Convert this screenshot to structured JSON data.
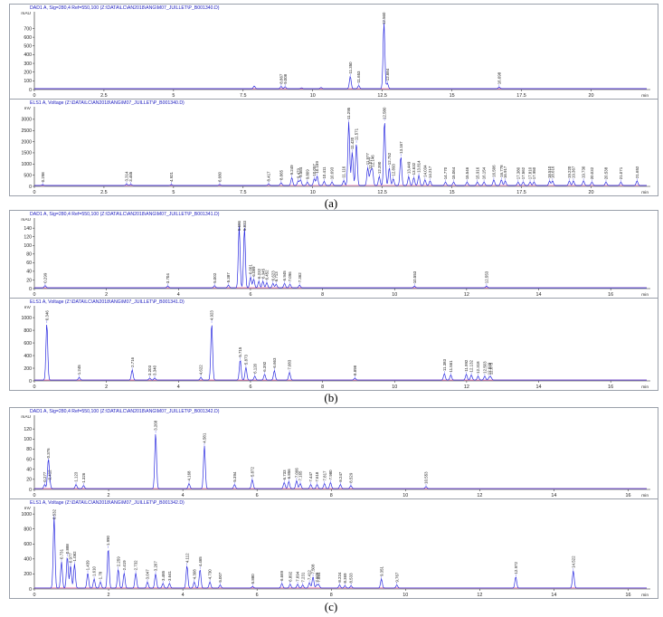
{
  "figure": {
    "captions": [
      "(a)",
      "(b)",
      "(c)"
    ]
  },
  "colors": {
    "trace": "#2a2ae0",
    "baseline": "#cc2288",
    "axis": "#222222",
    "title": "#2020c0"
  },
  "chart_data": [
    {
      "type": "line",
      "id": "a-uv",
      "title": "DAD1 A, Sig=280,4 Ref=550,100 (Z:\\DATA\\LC\\AN2018\\ANG\\M07_JUILLET\\P_B001340.D)",
      "ylabel": "mAU",
      "xlabel": "min",
      "xlim": [
        0,
        22
      ],
      "ylim": [
        0,
        850
      ],
      "xticks": [
        0,
        2.5,
        5,
        7.5,
        10,
        12.5,
        15,
        17.5,
        20
      ],
      "xtick_labels": [
        "0",
        "2.5",
        "5",
        "7.5",
        "10",
        "12.5",
        "15",
        "17.5",
        "20"
      ],
      "yticks": [
        0,
        100,
        200,
        300,
        400,
        500,
        600,
        700
      ],
      "ytick_labels": [
        "0",
        "100",
        "200",
        "300",
        "400",
        "500",
        "600",
        "700"
      ],
      "peaks": [
        {
          "t": 8.867,
          "h": 25,
          "label": "8.867"
        },
        {
          "t": 9.008,
          "h": 22,
          "label": "9.008"
        },
        {
          "t": 11.35,
          "h": 140,
          "label": "11.350"
        },
        {
          "t": 11.653,
          "h": 35,
          "label": "11.653"
        },
        {
          "t": 12.56,
          "h": 760,
          "label": "12.560"
        },
        {
          "t": 12.684,
          "h": 60,
          "label": "12.684"
        },
        {
          "t": 16.698,
          "h": 18,
          "label": "16.698"
        }
      ],
      "minor": [
        {
          "t": 7.9,
          "h": 30
        },
        {
          "t": 9.6,
          "h": 10
        },
        {
          "t": 10.3,
          "h": 14
        }
      ]
    },
    {
      "type": "line",
      "id": "a-els",
      "title": "ELS1 A, Voltage (Z:\\DATA\\LC\\AN2018\\ANG\\M07_JUILLET\\P_B001340.D)",
      "ylabel": "mV",
      "xlabel": "min",
      "xlim": [
        0,
        22
      ],
      "ylim": [
        0,
        3400
      ],
      "xticks": [
        0,
        2.5,
        5,
        7.5,
        10,
        12.5,
        15,
        17.5,
        20
      ],
      "xtick_labels": [
        "0",
        "2.5",
        "5",
        "7.5",
        "10",
        "12.5",
        "15",
        "17.5",
        "20"
      ],
      "yticks": [
        0,
        500,
        1000,
        1500,
        2000,
        2500,
        3000
      ],
      "ytick_labels": [
        "0",
        "500",
        "1000",
        "1500",
        "2000",
        "2500",
        "3000"
      ],
      "peaks": [
        {
          "t": 0.298,
          "h": 30,
          "label": "0.298"
        },
        {
          "t": 3.314,
          "h": 60,
          "label": "3.314"
        },
        {
          "t": 3.465,
          "h": 50,
          "label": "3.465"
        },
        {
          "t": 4.921,
          "h": 40,
          "label": "4.921"
        },
        {
          "t": 6.66,
          "h": 40,
          "label": "6.660"
        },
        {
          "t": 8.417,
          "h": 60,
          "label": "8.417"
        },
        {
          "t": 8.865,
          "h": 120,
          "label": "8.865"
        },
        {
          "t": 9.249,
          "h": 350,
          "label": "9.249"
        },
        {
          "t": 9.479,
          "h": 200,
          "label": "9.479"
        },
        {
          "t": 9.564,
          "h": 250,
          "label": "9.564"
        },
        {
          "t": 9.809,
          "h": 150,
          "label": "9.809"
        },
        {
          "t": 10.057,
          "h": 300,
          "label": "10.057"
        },
        {
          "t": 10.159,
          "h": 420,
          "label": "10.159"
        },
        {
          "t": 10.411,
          "h": 180,
          "label": "10.411"
        },
        {
          "t": 10.693,
          "h": 150,
          "label": "10.693"
        },
        {
          "t": 11.116,
          "h": 220,
          "label": "11.116"
        },
        {
          "t": 11.295,
          "h": 2850,
          "label": "11.295"
        },
        {
          "t": 11.42,
          "h": 1500,
          "label": "11.420"
        },
        {
          "t": 11.571,
          "h": 1900,
          "label": "11.571"
        },
        {
          "t": 11.977,
          "h": 800,
          "label": "11.977"
        },
        {
          "t": 12.077,
          "h": 600,
          "label": "12.077"
        },
        {
          "t": 12.146,
          "h": 700,
          "label": "12.146"
        },
        {
          "t": 12.39,
          "h": 400,
          "label": "12.390"
        },
        {
          "t": 12.58,
          "h": 2900,
          "label": "12.580"
        },
        {
          "t": 12.752,
          "h": 800,
          "label": "12.752"
        },
        {
          "t": 12.893,
          "h": 300,
          "label": "12.893"
        },
        {
          "t": 13.167,
          "h": 1300,
          "label": "13.167"
        },
        {
          "t": 13.449,
          "h": 400,
          "label": "13.449"
        },
        {
          "t": 13.632,
          "h": 350,
          "label": "13.632"
        },
        {
          "t": 13.814,
          "h": 450,
          "label": "13.814"
        },
        {
          "t": 14.034,
          "h": 250,
          "label": "14.034"
        },
        {
          "t": 14.217,
          "h": 200,
          "label": "14.217"
        },
        {
          "t": 14.77,
          "h": 150,
          "label": "14.770"
        },
        {
          "t": 15.064,
          "h": 150,
          "label": "15.064"
        },
        {
          "t": 15.546,
          "h": 150,
          "label": "15.546"
        },
        {
          "t": 15.916,
          "h": 150,
          "label": "15.916"
        },
        {
          "t": 16.154,
          "h": 150,
          "label": "16.154"
        },
        {
          "t": 16.506,
          "h": 250,
          "label": "16.506"
        },
        {
          "t": 16.778,
          "h": 250,
          "label": "16.778"
        },
        {
          "t": 16.917,
          "h": 200,
          "label": "16.917"
        },
        {
          "t": 17.38,
          "h": 150,
          "label": "17.380"
        },
        {
          "t": 17.562,
          "h": 150,
          "label": "17.562"
        },
        {
          "t": 17.81,
          "h": 150,
          "label": "17.810"
        },
        {
          "t": 17.95,
          "h": 150,
          "label": "17.950"
        },
        {
          "t": 18.51,
          "h": 200,
          "label": "18.510"
        },
        {
          "t": 18.616,
          "h": 200,
          "label": "18.616"
        },
        {
          "t": 19.22,
          "h": 200,
          "label": "19.220"
        },
        {
          "t": 19.367,
          "h": 200,
          "label": "19.367"
        },
        {
          "t": 19.73,
          "h": 200,
          "label": "19.730"
        },
        {
          "t": 20.032,
          "h": 150,
          "label": "20.032"
        },
        {
          "t": 20.538,
          "h": 150,
          "label": "20.538"
        },
        {
          "t": 21.071,
          "h": 150,
          "label": "21.071"
        },
        {
          "t": 21.652,
          "h": 200,
          "label": "21.652"
        }
      ],
      "minor": []
    },
    {
      "type": "line",
      "id": "b-uv",
      "title": "DAD1 A, Sig=280,4 Ref=550,100 (Z:\\DATA\\LC\\AN2018\\ANG\\M07_JUILLET\\P_B001341.D)",
      "ylabel": "mAU",
      "xlabel": "min",
      "xlim": [
        0,
        17
      ],
      "ylim": [
        0,
        155
      ],
      "xticks": [
        0,
        2,
        4,
        6,
        8,
        10,
        12,
        14,
        16
      ],
      "xtick_labels": [
        "0",
        "2",
        "4",
        "6",
        "8",
        "10",
        "12",
        "14",
        "16"
      ],
      "yticks": [
        0,
        20,
        40,
        60,
        80,
        100,
        120,
        140
      ],
      "ytick_labels": [
        "0",
        "20",
        "40",
        "60",
        "80",
        "100",
        "120",
        "140"
      ],
      "peaks": [
        {
          "t": 0.299,
          "h": 5,
          "label": "0.299"
        },
        {
          "t": 3.704,
          "h": 4,
          "label": "3.704"
        },
        {
          "t": 5.002,
          "h": 5,
          "label": "5.002"
        },
        {
          "t": 5.387,
          "h": 6,
          "label": "5.387"
        },
        {
          "t": 5.686,
          "h": 143,
          "label": "5.686"
        },
        {
          "t": 5.833,
          "h": 140,
          "label": "5.833"
        },
        {
          "t": 6.001,
          "h": 25,
          "label": "6.001"
        },
        {
          "t": 6.089,
          "h": 20,
          "label": "6.089"
        },
        {
          "t": 6.232,
          "h": 15,
          "label": "6.232"
        },
        {
          "t": 6.345,
          "h": 15,
          "label": "6.345"
        },
        {
          "t": 6.452,
          "h": 12,
          "label": "6.452"
        },
        {
          "t": 6.623,
          "h": 10,
          "label": "6.623"
        },
        {
          "t": 6.713,
          "h": 8,
          "label": "6.713"
        },
        {
          "t": 6.945,
          "h": 10,
          "label": "6.945"
        },
        {
          "t": 7.096,
          "h": 8,
          "label": "7.096"
        },
        {
          "t": 7.362,
          "h": 6,
          "label": "7.362"
        },
        {
          "t": 10.553,
          "h": 4,
          "label": "10.553"
        },
        {
          "t": 12.553,
          "h": 4,
          "label": "12.553"
        }
      ],
      "minor": []
    },
    {
      "type": "line",
      "id": "b-els",
      "title": "ELS1 A, Voltage (Z:\\DATA\\LC\\AN2018\\ANG\\M07_JUILLET\\P_B001341.D)",
      "ylabel": "mV",
      "xlabel": "min",
      "xlim": [
        0,
        17
      ],
      "ylim": [
        0,
        1130
      ],
      "xticks": [
        0,
        2,
        4,
        6,
        8,
        10,
        12,
        14,
        16
      ],
      "xtick_labels": [
        "0",
        "2",
        "4",
        "6",
        "8",
        "10",
        "12",
        "14",
        "16"
      ],
      "yticks": [
        0,
        200,
        400,
        600,
        800,
        1000
      ],
      "ytick_labels": [
        "0",
        "200",
        "400",
        "600",
        "800",
        "1000"
      ],
      "peaks": [
        {
          "t": 0.346,
          "h": 900,
          "label": "0.346"
        },
        {
          "t": 1.245,
          "h": 40,
          "label": "1.245"
        },
        {
          "t": 2.716,
          "h": 160,
          "label": "2.716"
        },
        {
          "t": 3.203,
          "h": 30,
          "label": "3.203"
        },
        {
          "t": 3.34,
          "h": 30,
          "label": "3.340"
        },
        {
          "t": 4.622,
          "h": 40,
          "label": "4.622"
        },
        {
          "t": 4.923,
          "h": 900,
          "label": "4.923"
        },
        {
          "t": 5.715,
          "h": 320,
          "label": "5.715"
        },
        {
          "t": 5.873,
          "h": 200,
          "label": "5.873"
        },
        {
          "t": 6.12,
          "h": 60,
          "label": "6.120"
        },
        {
          "t": 6.392,
          "h": 90,
          "label": "6.392"
        },
        {
          "t": 6.663,
          "h": 150,
          "label": "6.663"
        },
        {
          "t": 7.083,
          "h": 120,
          "label": "7.083"
        },
        {
          "t": 8.898,
          "h": 30,
          "label": "8.898"
        },
        {
          "t": 11.383,
          "h": 100,
          "label": "11.383"
        },
        {
          "t": 11.561,
          "h": 80,
          "label": "11.561"
        },
        {
          "t": 11.992,
          "h": 90,
          "label": "11.992"
        },
        {
          "t": 12.132,
          "h": 80,
          "label": "12.132"
        },
        {
          "t": 12.318,
          "h": 60,
          "label": "12.318"
        },
        {
          "t": 12.503,
          "h": 60,
          "label": "12.503"
        },
        {
          "t": 12.629,
          "h": 40,
          "label": "12.629"
        },
        {
          "t": 12.675,
          "h": 40,
          "label": "12.675"
        }
      ],
      "minor": []
    },
    {
      "type": "line",
      "id": "c-uv",
      "title": "DAD1 A, Sig=280,4 Ref=550,100 (Z:\\DATA\\LC\\AN2018\\ANG\\M07_JUILLET\\P_B001342.D)",
      "ylabel": "mAU",
      "xlabel": "min",
      "xlim": [
        0,
        16.5
      ],
      "ylim": [
        0,
        140
      ],
      "xticks": [
        0,
        2,
        4,
        6,
        8,
        10,
        12,
        14,
        16
      ],
      "xtick_labels": [
        "0",
        "2",
        "4",
        "6",
        "8",
        "10",
        "12",
        "14",
        "16"
      ],
      "yticks": [
        0,
        20,
        40,
        60,
        80,
        100,
        120
      ],
      "ytick_labels": [
        "0",
        "20",
        "40",
        "60",
        "80",
        "100",
        "120"
      ],
      "peaks": [
        {
          "t": 0.277,
          "h": 8,
          "label": "0.277"
        },
        {
          "t": 0.376,
          "h": 55,
          "label": "0.376"
        },
        {
          "t": 0.412,
          "h": 12,
          "label": "0.412"
        },
        {
          "t": 1.123,
          "h": 8,
          "label": "1.123"
        },
        {
          "t": 1.326,
          "h": 6,
          "label": "1.326"
        },
        {
          "t": 3.268,
          "h": 110,
          "label": "3.268"
        },
        {
          "t": 4.168,
          "h": 10,
          "label": "4.168"
        },
        {
          "t": 4.581,
          "h": 85,
          "label": "4.581"
        },
        {
          "t": 5.394,
          "h": 8,
          "label": "5.394"
        },
        {
          "t": 5.872,
          "h": 18,
          "label": "5.872"
        },
        {
          "t": 6.733,
          "h": 12,
          "label": "6.733"
        },
        {
          "t": 6.856,
          "h": 14,
          "label": "6.856"
        },
        {
          "t": 7.066,
          "h": 16,
          "label": "7.066"
        },
        {
          "t": 7.165,
          "h": 10,
          "label": "7.165"
        },
        {
          "t": 7.447,
          "h": 8,
          "label": "7.447"
        },
        {
          "t": 7.618,
          "h": 8,
          "label": "7.618"
        },
        {
          "t": 7.817,
          "h": 10,
          "label": "7.817"
        },
        {
          "t": 7.98,
          "h": 12,
          "label": "7.980"
        },
        {
          "t": 8.247,
          "h": 8,
          "label": "8.247"
        },
        {
          "t": 8.529,
          "h": 6,
          "label": "8.529"
        },
        {
          "t": 10.553,
          "h": 4,
          "label": "10.553"
        }
      ],
      "minor": []
    },
    {
      "type": "line",
      "id": "c-els",
      "title": "ELS1 A, Voltage (Z:\\DATA\\LC\\AN2018\\ANG\\M07_JUILLET\\P_B001342.D)",
      "ylabel": "mV",
      "xlabel": "min",
      "xlim": [
        0,
        16.5
      ],
      "ylim": [
        0,
        1050
      ],
      "xticks": [
        0,
        2,
        4,
        6,
        8,
        10,
        12,
        14,
        16
      ],
      "xtick_labels": [
        "0",
        "2",
        "4",
        "6",
        "8",
        "10",
        "12",
        "14",
        "16"
      ],
      "yticks": [
        0,
        200,
        400,
        600,
        800,
        1000
      ],
      "ytick_labels": [
        "0",
        "200",
        "400",
        "600",
        "800",
        "1000"
      ],
      "peaks": [
        {
          "t": 0.532,
          "h": 950,
          "label": "0.532"
        },
        {
          "t": 0.731,
          "h": 350,
          "label": "0.731"
        },
        {
          "t": 0.888,
          "h": 420,
          "label": "0.888"
        },
        {
          "t": 0.977,
          "h": 300,
          "label": "0.977"
        },
        {
          "t": 1.082,
          "h": 320,
          "label": "1.082"
        },
        {
          "t": 1.439,
          "h": 200,
          "label": "1.439"
        },
        {
          "t": 1.61,
          "h": 120,
          "label": "1.610"
        },
        {
          "t": 1.78,
          "h": 80,
          "label": "1.78"
        },
        {
          "t": 1.99,
          "h": 530,
          "label": "1.990"
        },
        {
          "t": 2.259,
          "h": 250,
          "label": "2.259"
        },
        {
          "t": 2.419,
          "h": 200,
          "label": "2.419"
        },
        {
          "t": 2.732,
          "h": 200,
          "label": "2.732"
        },
        {
          "t": 3.047,
          "h": 80,
          "label": "3.047"
        },
        {
          "t": 3.267,
          "h": 190,
          "label": "3.267"
        },
        {
          "t": 3.465,
          "h": 60,
          "label": "3.465"
        },
        {
          "t": 3.641,
          "h": 60,
          "label": "3.641"
        },
        {
          "t": 4.112,
          "h": 300,
          "label": "4.112"
        },
        {
          "t": 4.308,
          "h": 80,
          "label": "4.308"
        },
        {
          "t": 4.465,
          "h": 250,
          "label": "4.465"
        },
        {
          "t": 4.73,
          "h": 80,
          "label": "4.730"
        },
        {
          "t": 5.007,
          "h": 40,
          "label": "5.007"
        },
        {
          "t": 5.88,
          "h": 20,
          "label": "5.880"
        },
        {
          "t": 6.669,
          "h": 60,
          "label": "6.669"
        },
        {
          "t": 6.892,
          "h": 50,
          "label": "6.892"
        },
        {
          "t": 7.094,
          "h": 50,
          "label": "7.094"
        },
        {
          "t": 7.231,
          "h": 40,
          "label": "7.231"
        },
        {
          "t": 7.412,
          "h": 70,
          "label": "7.412"
        },
        {
          "t": 7.508,
          "h": 150,
          "label": "7.508"
        },
        {
          "t": 7.608,
          "h": 40,
          "label": "7.608"
        },
        {
          "t": 7.664,
          "h": 40,
          "label": "7.664"
        },
        {
          "t": 8.224,
          "h": 40,
          "label": "8.224"
        },
        {
          "t": 8.369,
          "h": 30,
          "label": "8.369"
        },
        {
          "t": 8.533,
          "h": 30,
          "label": "8.533"
        },
        {
          "t": 9.351,
          "h": 120,
          "label": "9.351"
        },
        {
          "t": 9.767,
          "h": 40,
          "label": "9.767"
        },
        {
          "t": 12.972,
          "h": 150,
          "label": "12.972"
        },
        {
          "t": 14.522,
          "h": 230,
          "label": "14.522"
        }
      ],
      "minor": []
    }
  ]
}
